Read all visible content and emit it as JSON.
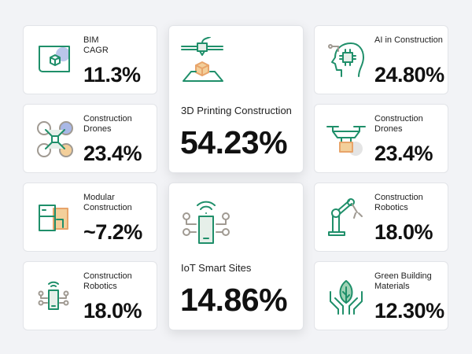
{
  "colors": {
    "accent": "#1f8f6a",
    "orange": "#e8a46a",
    "blue": "#a9b8e6",
    "gray": "#a09a92"
  },
  "cards": [
    {
      "label": "BIM\nCAGR",
      "value": "11.3%",
      "icon": "blueprint-cube-icon"
    },
    {
      "label": "Construction Drones",
      "value": "23.4%",
      "icon": "quadcopter-drone-icon"
    },
    {
      "label": "Modular Construction",
      "value": "~7.2%",
      "icon": "modular-blocks-icon"
    },
    {
      "label": "Construction Robotics",
      "value": "18.0%",
      "icon": "iot-phone-icon"
    },
    {
      "label": "3D Printing Construction",
      "value": "54.23%",
      "icon": "3d-printer-icon"
    },
    {
      "label": "IoT Smart Sites",
      "value": "14.86%",
      "icon": "iot-phone-icon"
    },
    {
      "label": "AI in Construction",
      "value": "24.80%",
      "icon": "ai-head-chip-icon"
    },
    {
      "label": "Construction Drones",
      "value": "23.4%",
      "icon": "drone-package-icon"
    },
    {
      "label": "Construction Robotics",
      "value": "18.0%",
      "icon": "robot-arm-icon"
    },
    {
      "label": "Green Building Materials",
      "value": "12.30%",
      "icon": "leaf-hands-icon"
    }
  ]
}
